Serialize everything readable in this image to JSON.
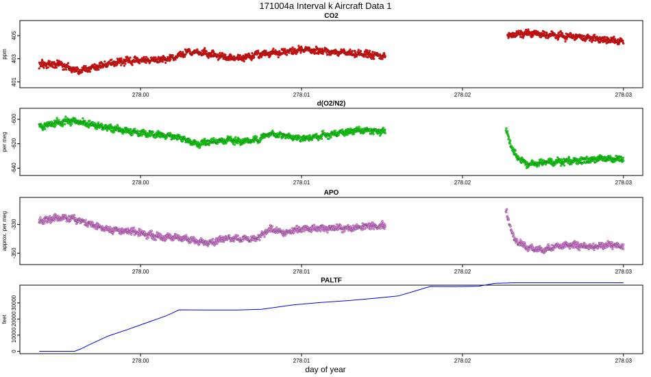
{
  "page": {
    "title": "171004a   Interval k Aircraft Data 1",
    "xlabel": "day of year"
  },
  "chart_data": [
    {
      "type": "scatter",
      "title": "CO2",
      "ylabel": "ppm",
      "color": "#ff0000",
      "xlim": [
        277.9925,
        278.0312
      ],
      "ylim": [
        400.5,
        406.3
      ],
      "yticks": [
        401,
        403,
        405
      ],
      "xticks": [
        278.0,
        278.01,
        278.02,
        278.03
      ],
      "x_tick_labels": [
        "278.00",
        "278.01",
        "278.02",
        "278.03"
      ],
      "series": [
        {
          "x": [
            277.9937,
            277.995,
            277.996,
            277.997,
            277.998,
            277.999,
            278.0,
            278.001,
            278.002,
            278.003,
            278.004,
            278.005,
            278.006,
            278.007,
            278.008,
            278.009,
            278.01,
            278.011,
            278.012,
            278.013,
            278.014,
            278.0152,
            278.0228,
            278.024,
            278.025,
            278.026,
            278.027,
            278.028,
            278.029,
            278.03
          ],
          "y": [
            402.5,
            402.5,
            402.0,
            402.2,
            402.6,
            402.8,
            402.9,
            402.9,
            403.1,
            403.6,
            403.5,
            403.2,
            403.0,
            403.3,
            403.5,
            403.6,
            403.8,
            403.7,
            403.6,
            403.5,
            403.4,
            403.2,
            405.0,
            405.2,
            405.1,
            405.0,
            404.9,
            404.8,
            404.6,
            404.5
          ]
        }
      ]
    },
    {
      "type": "scatter",
      "title": "d(O2/N2)",
      "ylabel": "per meg",
      "color": "#00ee00",
      "xlim": [
        277.9925,
        278.0312
      ],
      "ylim": [
        -646,
        -591
      ],
      "yticks": [
        -600,
        -620,
        -640
      ],
      "xticks": [
        278.0,
        278.01,
        278.02,
        278.03
      ],
      "x_tick_labels": [
        "278.00",
        "278.01",
        "278.02",
        "278.03"
      ],
      "series": [
        {
          "x": [
            277.9937,
            277.9945,
            277.9955,
            277.9965,
            277.9975,
            277.9985,
            277.9995,
            278.0005,
            278.0015,
            278.0025,
            278.0035,
            278.0045,
            278.0055,
            278.0063,
            278.0072,
            278.008,
            278.009,
            278.01,
            278.011,
            278.012,
            278.013,
            278.014,
            278.0152,
            278.0227,
            278.0232,
            278.024,
            278.025,
            278.026,
            278.027,
            278.028,
            278.029,
            278.03
          ],
          "y": [
            -606,
            -604,
            -601,
            -603,
            -606,
            -608,
            -611,
            -612,
            -613,
            -615,
            -620,
            -618,
            -617,
            -618,
            -617,
            -612,
            -614,
            -616,
            -614,
            -612,
            -610,
            -609,
            -610,
            -609,
            -628,
            -637,
            -635,
            -635,
            -634,
            -633,
            -632,
            -633
          ]
        }
      ]
    },
    {
      "type": "scatter",
      "title": "APO",
      "ylabel": "approx. per meg",
      "color": "#ee82ee",
      "xlim": [
        277.9925,
        278.0312
      ],
      "ylim": [
        -358,
        -311
      ],
      "yticks": [
        -330,
        -350
      ],
      "xticks": [
        278.0,
        278.01,
        278.02,
        278.03
      ],
      "x_tick_labels": [
        "278.00",
        "278.01",
        "278.02",
        "278.03"
      ],
      "series": [
        {
          "x": [
            277.9937,
            277.9945,
            277.9955,
            277.9965,
            277.9975,
            277.9985,
            277.9995,
            278.0005,
            278.0015,
            278.0025,
            278.0035,
            278.0045,
            278.0055,
            278.0063,
            278.0072,
            278.008,
            278.009,
            278.01,
            278.011,
            278.012,
            278.013,
            278.014,
            278.0152,
            278.0227,
            278.0232,
            278.024,
            278.025,
            278.026,
            278.027,
            278.028,
            278.029,
            278.03
          ],
          "y": [
            -328,
            -326,
            -325,
            -328,
            -332,
            -334,
            -335,
            -337,
            -339,
            -339,
            -342,
            -342,
            -339,
            -340,
            -340,
            -333,
            -336,
            -333,
            -333,
            -332,
            -333,
            -331,
            -331,
            -320,
            -340,
            -346,
            -348,
            -345,
            -344,
            -346,
            -344,
            -345
          ]
        }
      ]
    },
    {
      "type": "line",
      "title": "PALTF",
      "ylabel": "feet",
      "color": "#0000dd",
      "xlim": [
        277.9925,
        278.0312
      ],
      "ylim": [
        -1500,
        41000
      ],
      "yticks": [
        0,
        10000,
        20000,
        30000
      ],
      "xticks": [
        278.0,
        278.01,
        278.02,
        278.03
      ],
      "x_tick_labels": [
        "278.00",
        "278.01",
        "278.02",
        "278.03"
      ],
      "series": [
        {
          "x": [
            277.9937,
            277.9959,
            277.9963,
            277.9968,
            277.998,
            277.9992,
            278.0004,
            278.0016,
            278.0024,
            278.004,
            278.006,
            278.0075,
            278.0095,
            278.0112,
            278.013,
            278.0145,
            278.016,
            278.017,
            278.018,
            278.0195,
            278.021,
            278.022,
            278.0232,
            278.03
          ],
          "y": [
            0,
            0,
            1500,
            4000,
            9500,
            13500,
            17800,
            22000,
            25700,
            25600,
            25600,
            26000,
            28800,
            30300,
            31500,
            32800,
            34300,
            37200,
            40200,
            40100,
            40300,
            42100,
            42500,
            42500
          ]
        }
      ]
    }
  ]
}
